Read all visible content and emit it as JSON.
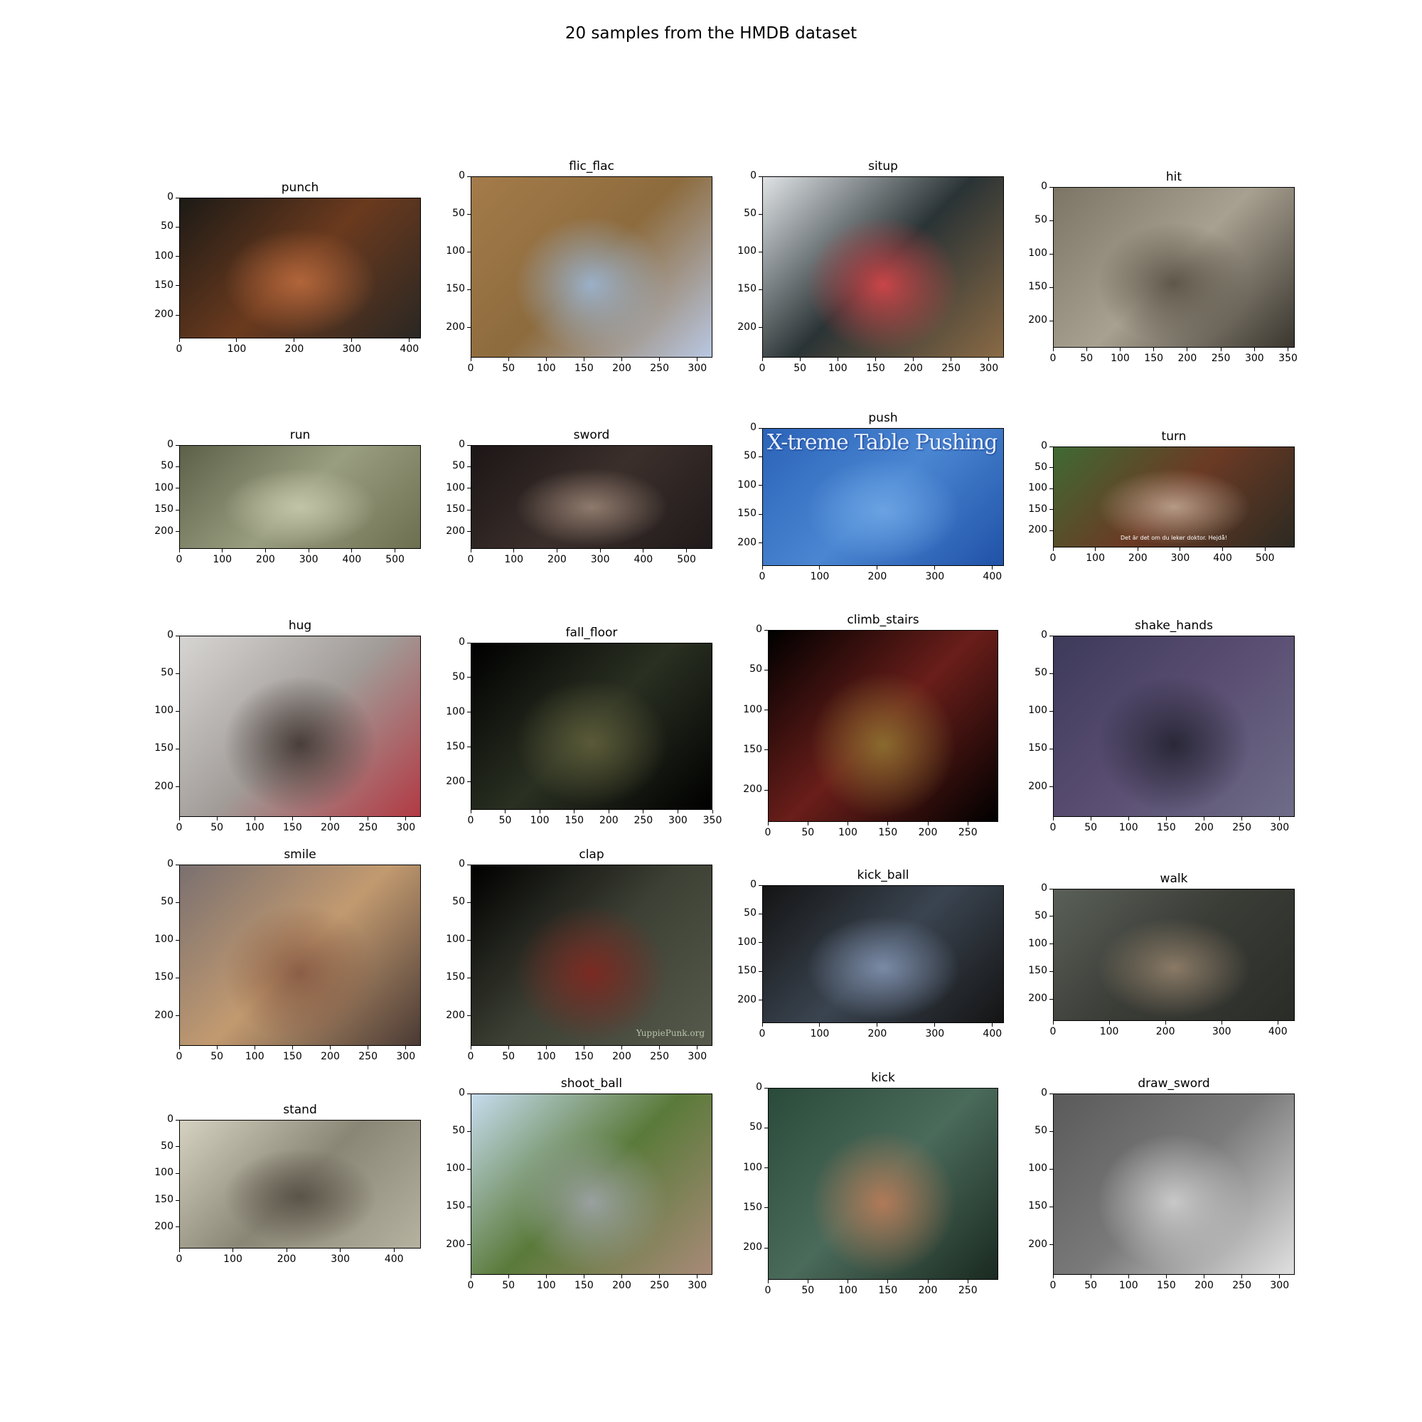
{
  "figure": {
    "title": "20 samples from the HMDB dataset",
    "panels": [
      {
        "label": "punch",
        "xticks": [
          0,
          100,
          200,
          300,
          400
        ],
        "yticks": [
          0,
          50,
          100,
          150,
          200
        ],
        "xmax": 420,
        "ymax": 240,
        "colors": [
          "#1c1a16",
          "#6b3a1e",
          "#b1653a",
          "#2a2723"
        ]
      },
      {
        "label": "flic_flac",
        "xticks": [
          0,
          50,
          100,
          150,
          200,
          250,
          300
        ],
        "yticks": [
          0,
          50,
          100,
          150,
          200
        ],
        "xmax": 320,
        "ymax": 240,
        "colors": [
          "#a47b4a",
          "#8d6b3d",
          "#9ab0c8",
          "#b8c7e2"
        ]
      },
      {
        "label": "situp",
        "xticks": [
          0,
          50,
          100,
          150,
          200,
          250,
          300
        ],
        "yticks": [
          0,
          50,
          100,
          150,
          200
        ],
        "xmax": 320,
        "ymax": 240,
        "colors": [
          "#dfe3e6",
          "#2a3335",
          "#c94548",
          "#8a6a45"
        ]
      },
      {
        "label": "hit",
        "xticks": [
          0,
          50,
          100,
          150,
          200,
          250,
          300,
          350
        ],
        "yticks": [
          0,
          50,
          100,
          150,
          200
        ],
        "xmax": 360,
        "ymax": 240,
        "colors": [
          "#7c7565",
          "#a8a090",
          "#5e574a",
          "#3a362f"
        ]
      },
      {
        "label": "run",
        "xticks": [
          0,
          100,
          200,
          300,
          400,
          500
        ],
        "yticks": [
          0,
          50,
          100,
          150,
          200
        ],
        "xmax": 560,
        "ymax": 240,
        "colors": [
          "#5c6048",
          "#9a9e80",
          "#c2c4a7",
          "#6d6f50"
        ]
      },
      {
        "label": "sword",
        "xticks": [
          0,
          100,
          200,
          300,
          400,
          500
        ],
        "yticks": [
          0,
          50,
          100,
          150,
          200
        ],
        "xmax": 560,
        "ymax": 240,
        "colors": [
          "#1c1616",
          "#3b2f2b",
          "#8f7a6d",
          "#201a1a"
        ]
      },
      {
        "label": "push",
        "xticks": [
          0,
          100,
          200,
          300,
          400
        ],
        "yticks": [
          0,
          50,
          100,
          150,
          200
        ],
        "xmax": 420,
        "ymax": 240,
        "colors": [
          "#2b63b8",
          "#4a86d2",
          "#6aa2e2",
          "#2052a8"
        ],
        "overlay": "X-treme Table Pushing"
      },
      {
        "label": "turn",
        "xticks": [
          0,
          100,
          200,
          300,
          400,
          500
        ],
        "yticks": [
          0,
          50,
          100,
          150,
          200
        ],
        "xmax": 570,
        "ymax": 240,
        "colors": [
          "#3f6a33",
          "#6b3a24",
          "#b59a86",
          "#2c2a22"
        ],
        "subtitle": "Det är det om du leker doktor. Hejdå!"
      },
      {
        "label": "hug",
        "xticks": [
          0,
          50,
          100,
          150,
          200,
          250,
          300
        ],
        "yticks": [
          0,
          50,
          100,
          150,
          200
        ],
        "xmax": 320,
        "ymax": 240,
        "colors": [
          "#d7d5d3",
          "#a19c98",
          "#4a3e3a",
          "#b23a44"
        ]
      },
      {
        "label": "fall_floor",
        "xticks": [
          0,
          50,
          100,
          150,
          200,
          250,
          300,
          350
        ],
        "yticks": [
          0,
          50,
          100,
          150,
          200
        ],
        "xmax": 350,
        "ymax": 240,
        "colors": [
          "#000000",
          "#2a3022",
          "#5a5a38",
          "#000000"
        ]
      },
      {
        "label": "climb_stairs",
        "xticks": [
          0,
          50,
          100,
          150,
          200,
          250
        ],
        "yticks": [
          0,
          50,
          100,
          150,
          200
        ],
        "xmax": 288,
        "ymax": 240,
        "colors": [
          "#000000",
          "#6a1e1a",
          "#8a6a2e",
          "#000000"
        ]
      },
      {
        "label": "shake_hands",
        "xticks": [
          0,
          50,
          100,
          150,
          200,
          250,
          300
        ],
        "yticks": [
          0,
          50,
          100,
          150,
          200
        ],
        "xmax": 320,
        "ymax": 240,
        "colors": [
          "#3d3a5a",
          "#5a4e72",
          "#2a2838",
          "#6e6c88"
        ]
      },
      {
        "label": "smile",
        "xticks": [
          0,
          50,
          100,
          150,
          200,
          250,
          300
        ],
        "yticks": [
          0,
          50,
          100,
          150,
          200
        ],
        "xmax": 320,
        "ymax": 240,
        "colors": [
          "#7a7070",
          "#c29a70",
          "#8a5e46",
          "#4a3a34"
        ]
      },
      {
        "label": "clap",
        "xticks": [
          0,
          50,
          100,
          150,
          200,
          250,
          300
        ],
        "yticks": [
          0,
          50,
          100,
          150,
          200
        ],
        "xmax": 320,
        "ymax": 240,
        "colors": [
          "#000000",
          "#3d4034",
          "#7a2a22",
          "#565a4c"
        ],
        "watermark": "YuppiePunk.org"
      },
      {
        "label": "kick_ball",
        "xticks": [
          0,
          100,
          200,
          300,
          400
        ],
        "yticks": [
          0,
          50,
          100,
          150,
          200
        ],
        "xmax": 420,
        "ymax": 240,
        "colors": [
          "#141414",
          "#3a4450",
          "#7a8aa6",
          "#141414"
        ]
      },
      {
        "label": "walk",
        "xticks": [
          0,
          100,
          200,
          300,
          400
        ],
        "yticks": [
          0,
          50,
          100,
          150,
          200
        ],
        "xmax": 430,
        "ymax": 240,
        "colors": [
          "#5a6058",
          "#3a3c36",
          "#8a7a66",
          "#2a2c28"
        ]
      },
      {
        "label": "stand",
        "xticks": [
          0,
          100,
          200,
          300,
          400
        ],
        "yticks": [
          0,
          50,
          100,
          150,
          200
        ],
        "xmax": 450,
        "ymax": 240,
        "colors": [
          "#d6d2c2",
          "#8a8676",
          "#5a5448",
          "#b6b2a0"
        ]
      },
      {
        "label": "shoot_ball",
        "xticks": [
          0,
          50,
          100,
          150,
          200,
          250,
          300
        ],
        "yticks": [
          0,
          50,
          100,
          150,
          200
        ],
        "xmax": 320,
        "ymax": 240,
        "colors": [
          "#c6dcee",
          "#5a7a3a",
          "#9aa0a0",
          "#a88a78"
        ]
      },
      {
        "label": "kick",
        "xticks": [
          0,
          50,
          100,
          150,
          200,
          250
        ],
        "yticks": [
          0,
          50,
          100,
          150,
          200
        ],
        "xmax": 288,
        "ymax": 240,
        "colors": [
          "#2a4a3a",
          "#4a6a5a",
          "#b07a58",
          "#1a2a20"
        ]
      },
      {
        "label": "draw_sword",
        "xticks": [
          0,
          50,
          100,
          150,
          200,
          250,
          300
        ],
        "yticks": [
          0,
          50,
          100,
          150,
          200
        ],
        "xmax": 320,
        "ymax": 240,
        "colors": [
          "#5a5a5a",
          "#7a7a7a",
          "#c8c8c8",
          "#e0e0e0"
        ]
      }
    ]
  }
}
